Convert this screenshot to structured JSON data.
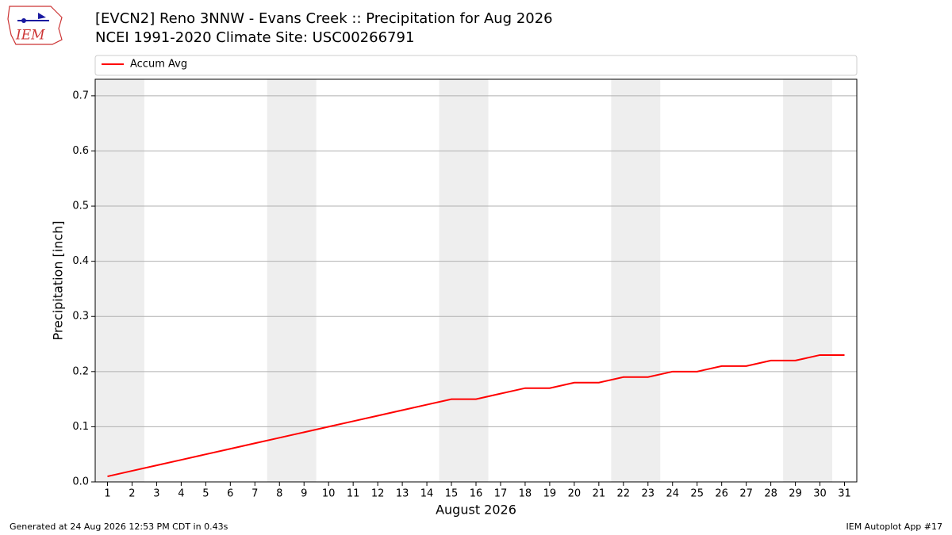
{
  "chart_data": {
    "type": "line",
    "title": "[EVCN2] Reno 3NNW - Evans Creek :: Precipitation for Aug 2026",
    "subtitle": "NCEI 1991-2020 Climate Site: USC00266791",
    "logo_text": "IEM",
    "xlabel": "August 2026",
    "ylabel": "Precipitation [inch]",
    "x": [
      1,
      2,
      3,
      4,
      5,
      6,
      7,
      8,
      9,
      10,
      11,
      12,
      13,
      14,
      15,
      16,
      17,
      18,
      19,
      20,
      21,
      22,
      23,
      24,
      25,
      26,
      27,
      28,
      29,
      30,
      31
    ],
    "series": [
      {
        "name": "Accum Avg",
        "color": "#ff0000",
        "values": [
          0.01,
          0.02,
          0.03,
          0.04,
          0.05,
          0.06,
          0.07,
          0.08,
          0.09,
          0.1,
          0.11,
          0.12,
          0.13,
          0.14,
          0.15,
          0.15,
          0.16,
          0.17,
          0.17,
          0.18,
          0.18,
          0.19,
          0.19,
          0.2,
          0.2,
          0.21,
          0.21,
          0.22,
          0.22,
          0.23,
          0.23
        ]
      }
    ],
    "shaded_ranges": [
      [
        0.5,
        2.5
      ],
      [
        7.5,
        9.5
      ],
      [
        14.5,
        16.5
      ],
      [
        21.5,
        23.5
      ],
      [
        28.5,
        30.5
      ]
    ],
    "shade_color": "#eeeeee",
    "xlim": [
      0.5,
      31.5
    ],
    "xticks": [
      1,
      2,
      3,
      4,
      5,
      6,
      7,
      8,
      9,
      10,
      11,
      12,
      13,
      14,
      15,
      16,
      17,
      18,
      19,
      20,
      21,
      22,
      23,
      24,
      25,
      26,
      27,
      28,
      29,
      30,
      31
    ],
    "ylim": [
      0,
      0.73
    ],
    "yticks": [
      0.0,
      0.1,
      0.2,
      0.3,
      0.4,
      0.5,
      0.6,
      0.7
    ],
    "ytick_labels": [
      "0.0",
      "0.1",
      "0.2",
      "0.3",
      "0.4",
      "0.5",
      "0.6",
      "0.7"
    ],
    "grid": "y",
    "legend": "top",
    "footer_left": "Generated at 24 Aug 2026 12:53 PM CDT in 0.43s",
    "footer_right": "IEM Autoplot App #17"
  }
}
